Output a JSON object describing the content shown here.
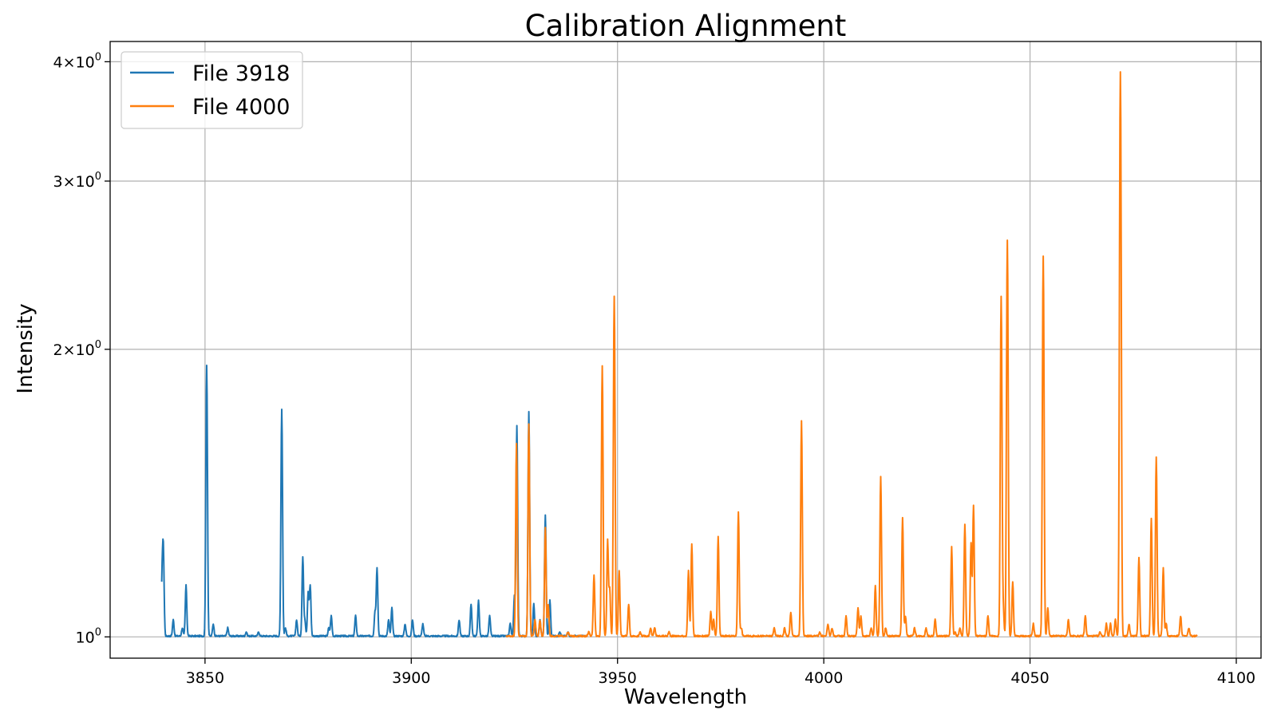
{
  "chart_data": {
    "type": "line",
    "title": "Calibration Alignment",
    "xlabel": "Wavelength",
    "ylabel": "Intensity",
    "xlim": [
      3827,
      4106
    ],
    "ylim": [
      0.95,
      4.2
    ],
    "yscale": "log",
    "grid": true,
    "legend_position": "top-left",
    "x_ticks": [
      {
        "value": 3850,
        "label": "3850"
      },
      {
        "value": 3900,
        "label": "3900"
      },
      {
        "value": 3950,
        "label": "3950"
      },
      {
        "value": 4000,
        "label": "4000"
      },
      {
        "value": 4050,
        "label": "4050"
      },
      {
        "value": 4100,
        "label": "4100"
      }
    ],
    "y_ticks": [
      {
        "value": 1,
        "base": "10",
        "exp": "0"
      },
      {
        "value": 2,
        "coef": "2",
        "base": "10",
        "exp": "0"
      },
      {
        "value": 3,
        "coef": "3",
        "base": "10",
        "exp": "0"
      },
      {
        "value": 4,
        "coef": "4",
        "base": "10",
        "exp": "0"
      }
    ],
    "series": [
      {
        "name": "File 3918",
        "color": "#1f77b4",
        "range": [
          3839.5,
          3942
        ],
        "baseline": 1.0,
        "peaks": [
          [
            3839.6,
            1.14
          ],
          [
            3839.9,
            1.22
          ],
          [
            3842.3,
            1.04
          ],
          [
            3844.5,
            1.02
          ],
          [
            3845.4,
            1.13
          ],
          [
            3850.4,
            1.92
          ],
          [
            3852.0,
            1.03
          ],
          [
            3855.5,
            1.02
          ],
          [
            3860.0,
            1.01
          ],
          [
            3863.0,
            1.01
          ],
          [
            3868.6,
            1.73
          ],
          [
            3869.5,
            1.02
          ],
          [
            3872.2,
            1.04
          ],
          [
            3873.7,
            1.21
          ],
          [
            3874.2,
            1.04
          ],
          [
            3875.0,
            1.11
          ],
          [
            3875.5,
            1.13
          ],
          [
            3880.0,
            1.02
          ],
          [
            3880.6,
            1.05
          ],
          [
            3886.5,
            1.05
          ],
          [
            3891.2,
            1.06
          ],
          [
            3891.7,
            1.18
          ],
          [
            3894.5,
            1.04
          ],
          [
            3895.3,
            1.07
          ],
          [
            3898.5,
            1.03
          ],
          [
            3900.3,
            1.04
          ],
          [
            3902.8,
            1.03
          ],
          [
            3911.6,
            1.04
          ],
          [
            3914.5,
            1.08
          ],
          [
            3916.3,
            1.09
          ],
          [
            3919.0,
            1.05
          ],
          [
            3924.0,
            1.03
          ],
          [
            3925.0,
            1.1
          ],
          [
            3925.6,
            1.66
          ],
          [
            3928.5,
            1.72
          ],
          [
            3929.7,
            1.08
          ],
          [
            3931.2,
            1.04
          ],
          [
            3932.5,
            1.34
          ],
          [
            3933.6,
            1.09
          ],
          [
            3936.0,
            1.01
          ],
          [
            3938.0,
            1.01
          ]
        ]
      },
      {
        "name": "File 4000",
        "color": "#ff7f0e",
        "range": [
          3923,
          4090.5
        ],
        "baseline": 1.0,
        "peaks": [
          [
            3925.5,
            1.59
          ],
          [
            3928.5,
            1.67
          ],
          [
            3930.0,
            1.04
          ],
          [
            3931.2,
            1.04
          ],
          [
            3932.5,
            1.3
          ],
          [
            3933.2,
            1.08
          ],
          [
            3938.0,
            1.01
          ],
          [
            3943.0,
            1.01
          ],
          [
            3944.3,
            1.16
          ],
          [
            3946.3,
            1.92
          ],
          [
            3947.6,
            1.26
          ],
          [
            3948.1,
            1.12
          ],
          [
            3949.2,
            2.27
          ],
          [
            3950.4,
            1.17
          ],
          [
            3952.7,
            1.08
          ],
          [
            3955.5,
            1.01
          ],
          [
            3958.0,
            1.02
          ],
          [
            3959.0,
            1.02
          ],
          [
            3962.5,
            1.01
          ],
          [
            3967.2,
            1.17
          ],
          [
            3968.0,
            1.25
          ],
          [
            3972.6,
            1.06
          ],
          [
            3973.3,
            1.04
          ],
          [
            3974.4,
            1.27
          ],
          [
            3979.3,
            1.35
          ],
          [
            3980.0,
            1.02
          ],
          [
            3988.0,
            1.02
          ],
          [
            3990.5,
            1.02
          ],
          [
            3992.0,
            1.06
          ],
          [
            3994.6,
            1.68
          ],
          [
            3999.0,
            1.01
          ],
          [
            4001.0,
            1.03
          ],
          [
            4002.0,
            1.02
          ],
          [
            4005.4,
            1.05
          ],
          [
            4008.3,
            1.07
          ],
          [
            4009.0,
            1.05
          ],
          [
            4011.5,
            1.02
          ],
          [
            4012.5,
            1.13
          ],
          [
            4013.8,
            1.47
          ],
          [
            4015.0,
            1.02
          ],
          [
            4019.1,
            1.33
          ],
          [
            4019.8,
            1.05
          ],
          [
            4022.0,
            1.02
          ],
          [
            4024.8,
            1.02
          ],
          [
            4027.0,
            1.04
          ],
          [
            4031.0,
            1.24
          ],
          [
            4031.8,
            1.01
          ],
          [
            4033.0,
            1.02
          ],
          [
            4034.2,
            1.31
          ],
          [
            4035.7,
            1.25
          ],
          [
            4036.3,
            1.37
          ],
          [
            4039.8,
            1.05
          ],
          [
            4043.0,
            2.27
          ],
          [
            4043.5,
            1.07
          ],
          [
            4044.5,
            2.6
          ],
          [
            4045.8,
            1.14
          ],
          [
            4050.8,
            1.03
          ],
          [
            4053.2,
            2.5
          ],
          [
            4054.3,
            1.07
          ],
          [
            4059.3,
            1.04
          ],
          [
            4063.4,
            1.05
          ],
          [
            4067.0,
            1.01
          ],
          [
            4068.5,
            1.03
          ],
          [
            4069.5,
            1.03
          ],
          [
            4070.7,
            1.04
          ],
          [
            4071.9,
            3.9
          ],
          [
            4074.0,
            1.03
          ],
          [
            4076.4,
            1.21
          ],
          [
            4079.4,
            1.33
          ],
          [
            4080.6,
            1.54
          ],
          [
            4082.3,
            1.18
          ],
          [
            4083.0,
            1.03
          ],
          [
            4086.5,
            1.05
          ],
          [
            4088.5,
            1.02
          ]
        ]
      }
    ]
  }
}
